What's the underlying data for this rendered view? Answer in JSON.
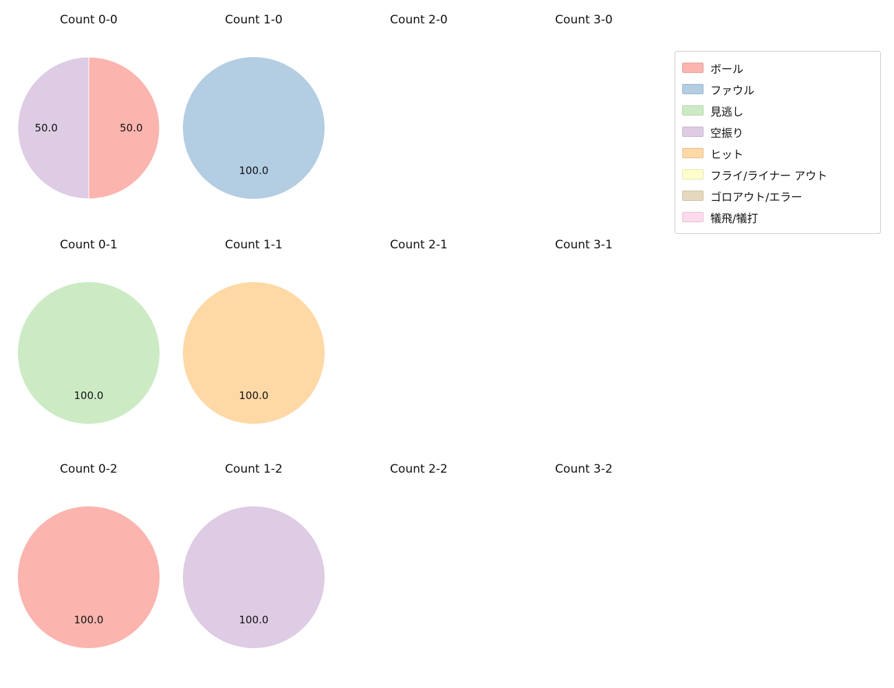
{
  "figure": {
    "background": "#ffffff"
  },
  "legend": {
    "items": [
      {
        "label": "ボール",
        "color": "#fbb4ae"
      },
      {
        "label": "ファウル",
        "color": "#b3cde3"
      },
      {
        "label": "見逃し",
        "color": "#ccebc5"
      },
      {
        "label": "空振り",
        "color": "#decbe4"
      },
      {
        "label": "ヒット",
        "color": "#fed9a6"
      },
      {
        "label": "フライ/ライナー アウト",
        "color": "#ffffcc"
      },
      {
        "label": "ゴロアウト/エラー",
        "color": "#e5d8bd"
      },
      {
        "label": "犠飛/犠打",
        "color": "#fddaec"
      }
    ]
  },
  "chart_data": {
    "type": "pie",
    "layout_hint": "grid of 12 pie charts, 3 rows x 4 columns, legend box at top right, labels placed at 0.6 radius",
    "charts": [
      {
        "title": "Count 0-0",
        "slices": [
          {
            "label": "ボール",
            "value": 50.0,
            "label_text": "50.0",
            "color": "#fbb4ae"
          },
          {
            "label": "空振り",
            "value": 50.0,
            "label_text": "50.0",
            "color": "#decbe4"
          }
        ]
      },
      {
        "title": "Count 1-0",
        "slices": [
          {
            "label": "ファウル",
            "value": 100.0,
            "label_text": "100.0",
            "color": "#b3cde3"
          }
        ]
      },
      {
        "title": "Count 2-0",
        "slices": []
      },
      {
        "title": "Count 3-0",
        "slices": []
      },
      {
        "title": "Count 0-1",
        "slices": [
          {
            "label": "見逃し",
            "value": 100.0,
            "label_text": "100.0",
            "color": "#ccebc5"
          }
        ]
      },
      {
        "title": "Count 1-1",
        "slices": [
          {
            "label": "ヒット",
            "value": 100.0,
            "label_text": "100.0",
            "color": "#fed9a6"
          }
        ]
      },
      {
        "title": "Count 2-1",
        "slices": []
      },
      {
        "title": "Count 3-1",
        "slices": []
      },
      {
        "title": "Count 0-2",
        "slices": [
          {
            "label": "ボール",
            "value": 100.0,
            "label_text": "100.0",
            "color": "#fbb4ae"
          }
        ]
      },
      {
        "title": "Count 1-2",
        "slices": [
          {
            "label": "空振り",
            "value": 100.0,
            "label_text": "100.0",
            "color": "#decbe4"
          }
        ]
      },
      {
        "title": "Count 2-2",
        "slices": []
      },
      {
        "title": "Count 3-2",
        "slices": []
      }
    ]
  }
}
